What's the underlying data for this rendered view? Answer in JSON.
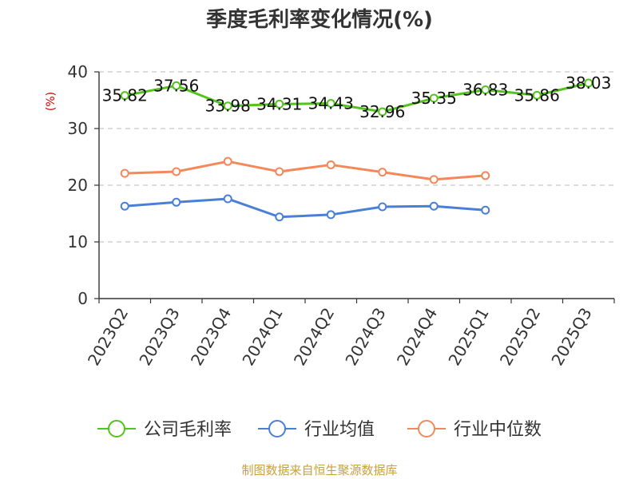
{
  "chart_data": {
    "type": "line",
    "title": "季度毛利率变化情况(%)",
    "ylabel": "(%)",
    "xlabel": "",
    "ylim": [
      0,
      40
    ],
    "yticks": [
      0,
      10,
      20,
      30,
      40
    ],
    "grid": true,
    "legend_position": "bottom",
    "categories": [
      "2023Q2",
      "2023Q3",
      "2023Q4",
      "2024Q1",
      "2024Q2",
      "2024Q3",
      "2024Q4",
      "2025Q1",
      "2025Q2",
      "2025Q3"
    ],
    "series": [
      {
        "name": "公司毛利率",
        "color": "#52c41a",
        "values": [
          35.82,
          37.56,
          33.98,
          34.31,
          34.43,
          32.96,
          35.35,
          36.83,
          35.86,
          38.03
        ],
        "labels": [
          "35.82",
          "37.56",
          "33.98",
          "34.31",
          "34.43",
          "32.96",
          "35.35",
          "36.83",
          "35.86",
          "38.03"
        ]
      },
      {
        "name": "行业均值",
        "color": "#4a7fd8",
        "values": [
          16.3,
          17.0,
          17.6,
          14.4,
          14.8,
          16.2,
          16.3,
          15.6,
          null,
          null
        ]
      },
      {
        "name": "行业中位数",
        "color": "#f5885a",
        "values": [
          22.1,
          22.4,
          24.2,
          22.4,
          23.6,
          22.3,
          21.0,
          21.7,
          null,
          null
        ]
      }
    ],
    "source": "制图数据来自恒生聚源数据库"
  }
}
